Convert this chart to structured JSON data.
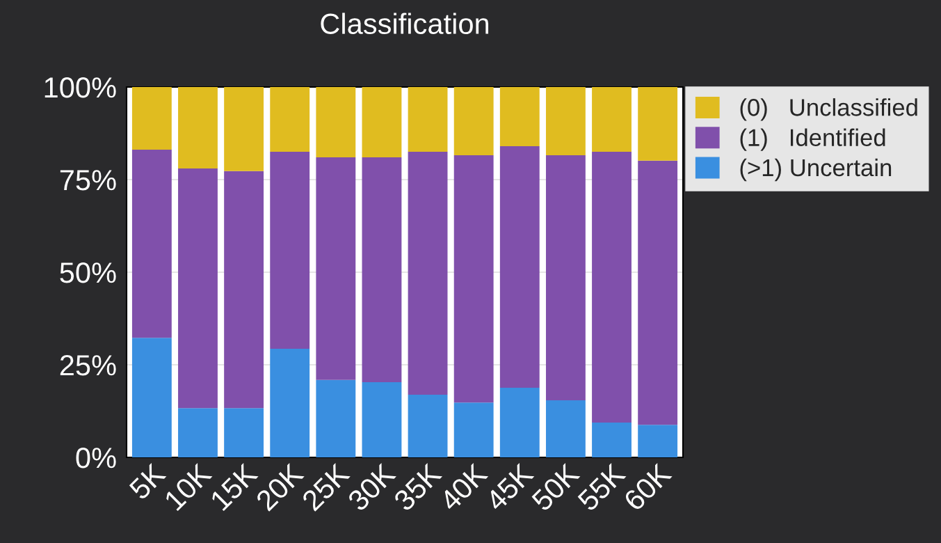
{
  "chart_data": {
    "type": "bar",
    "title": "Classification",
    "stacked": true,
    "categories": [
      "5K",
      "10K",
      "15K",
      "20K",
      "25K",
      "30K",
      "35K",
      "40K",
      "45K",
      "50K",
      "55K",
      "60K"
    ],
    "series": [
      {
        "name": "(>1) Uncertain",
        "color": "#3a8fe0",
        "values": [
          32.3,
          13.3,
          13.3,
          29.3,
          20.9,
          20.3,
          16.9,
          14.8,
          18.8,
          15.4,
          9.4,
          8.8
        ]
      },
      {
        "name": "(1)   Identified",
        "color": "#8050ab",
        "values": [
          50.8,
          64.7,
          64.0,
          53.2,
          60.1,
          60.7,
          65.6,
          66.8,
          65.2,
          66.2,
          73.1,
          71.3
        ]
      },
      {
        "name": "(0)   Unclassified",
        "color": "#e0bc20",
        "values": [
          16.9,
          22.0,
          22.7,
          17.5,
          19.0,
          19.0,
          17.5,
          18.4,
          16.0,
          18.4,
          17.5,
          19.9
        ]
      }
    ],
    "ylim": [
      0,
      100
    ],
    "yticks": [
      {
        "value": 0,
        "label": "0%"
      },
      {
        "value": 25,
        "label": "25%"
      },
      {
        "value": 50,
        "label": "50%"
      },
      {
        "value": 75,
        "label": "75%"
      },
      {
        "value": 100,
        "label": "100%"
      }
    ],
    "grid": "y",
    "legend": "top right"
  }
}
